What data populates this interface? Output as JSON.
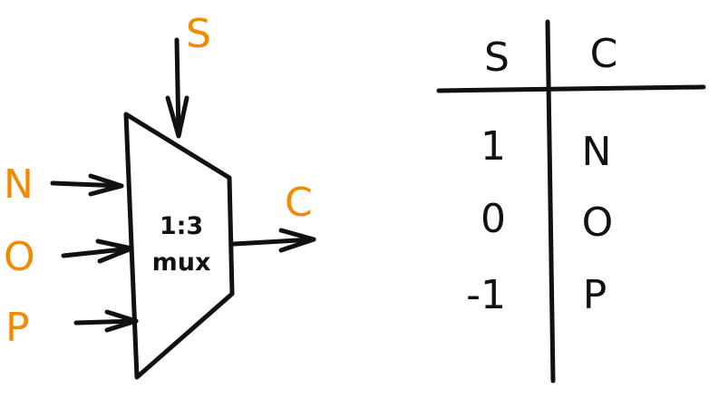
{
  "diagram": {
    "mux": {
      "line1": "1:3",
      "line2": "mux"
    },
    "inputs": [
      "N",
      "O",
      "P"
    ],
    "select_label": "S",
    "output_label": "C",
    "colors": {
      "label": "#f28a00",
      "ink": "#111111"
    }
  },
  "table": {
    "headers": [
      "S",
      "C"
    ],
    "rows": [
      {
        "s": "1",
        "c": "N"
      },
      {
        "s": "0",
        "c": "O"
      },
      {
        "s": "-1",
        "c": "P"
      }
    ]
  }
}
